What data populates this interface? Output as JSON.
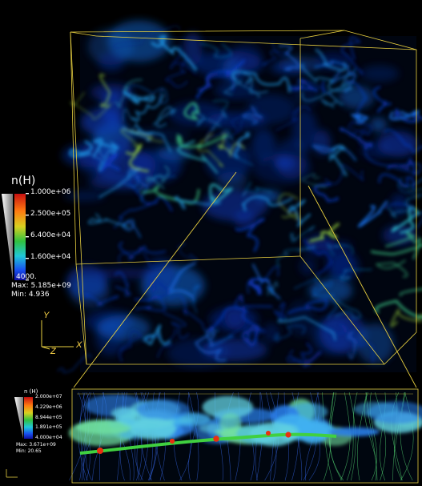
{
  "main_legend": {
    "title": "n(H)",
    "ticks": [
      "1.000e+06",
      "2.500e+05",
      "6.400e+04",
      "1.600e+04",
      "4000."
    ],
    "max_label": "Max: 5.185e+09",
    "min_label": "Min: 4.936",
    "colors": [
      "#c81010",
      "#ff7a10",
      "#d8d020",
      "#30c040",
      "#20c8d8",
      "#1850f0",
      "#1010a0"
    ]
  },
  "inset_legend": {
    "title": "n (H)",
    "ticks": [
      "2.000e+07",
      "4.229e+06",
      "8.944e+05",
      "1.891e+05",
      "4.000e+04"
    ],
    "max_label": "Max: 3.671e+09",
    "min_label": "Min: 20.65"
  },
  "axes": {
    "y": "Y",
    "z": "Z",
    "x": "X"
  },
  "colors": {
    "frame": "#e8d040",
    "background": "#000000"
  }
}
